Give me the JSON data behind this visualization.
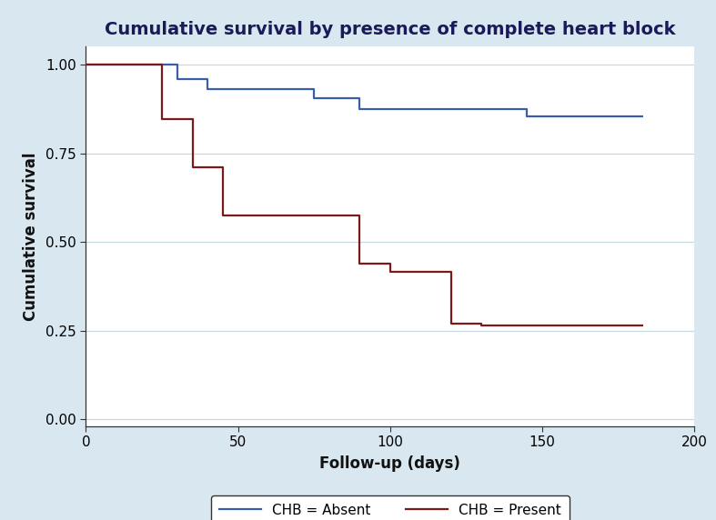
{
  "title": "Cumulative survival by presence of complete heart block",
  "xlabel": "Follow-up (days)",
  "ylabel": "Cumulative survival",
  "xlim": [
    0,
    200
  ],
  "ylim": [
    -0.02,
    1.05
  ],
  "yticks": [
    0.0,
    0.25,
    0.5,
    0.75,
    1.0
  ],
  "ytick_labels": [
    "0.00",
    "0.25",
    "0.50",
    "0.75",
    "1.00"
  ],
  "xticks": [
    0,
    50,
    100,
    150,
    200
  ],
  "background_color": "#d9e8f0",
  "plot_bg_color": "#ffffff",
  "chb_absent_color": "#3a5fa8",
  "chb_present_color": "#7a1a1a",
  "chb_absent_x": [
    0,
    30,
    30,
    40,
    40,
    75,
    75,
    90,
    90,
    145,
    145,
    183
  ],
  "chb_absent_y": [
    1.0,
    1.0,
    0.96,
    0.96,
    0.93,
    0.93,
    0.905,
    0.905,
    0.875,
    0.875,
    0.855,
    0.855
  ],
  "chb_present_x": [
    0,
    25,
    25,
    35,
    35,
    45,
    45,
    90,
    90,
    100,
    100,
    120,
    120,
    130,
    130,
    183
  ],
  "chb_present_y": [
    1.0,
    1.0,
    0.845,
    0.845,
    0.71,
    0.71,
    0.575,
    0.575,
    0.44,
    0.44,
    0.415,
    0.415,
    0.27,
    0.27,
    0.265,
    0.265
  ],
  "legend_label_absent": "CHB = Absent",
  "legend_label_present": "CHB = Present",
  "title_fontsize": 14,
  "axis_label_fontsize": 12,
  "tick_fontsize": 11,
  "legend_fontsize": 11,
  "line_width": 1.6,
  "grid_color": "#c8d8e0",
  "spine_color": "#333333",
  "title_color": "#1a1a5a"
}
